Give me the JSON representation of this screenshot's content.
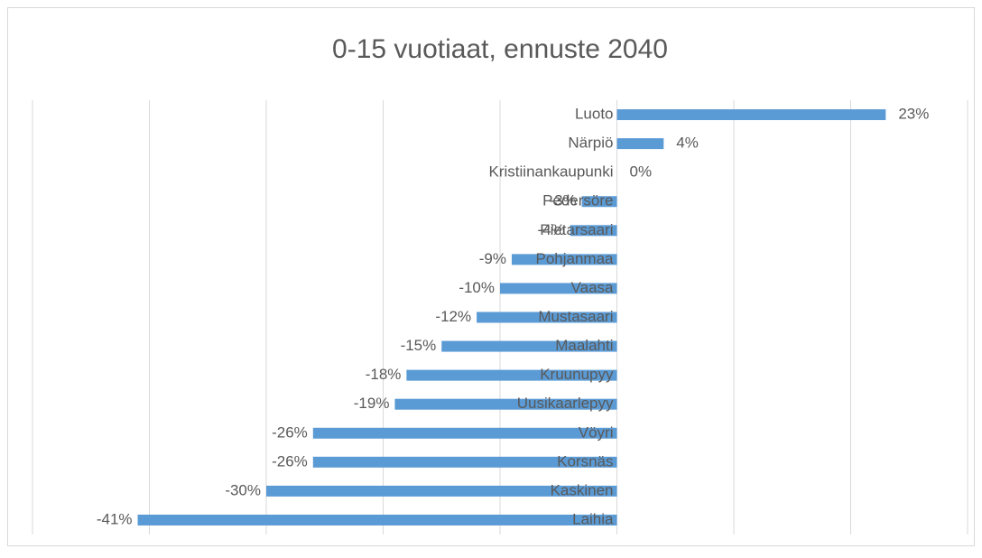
{
  "chart_data": {
    "type": "hbar",
    "title": "0-15 vuotiaat, ennuste 2040",
    "categories": [
      "Luoto",
      "Närpiö",
      "Kristiinankaupunki",
      "Pedersöre",
      "Pietarsaari",
      "Pohjanmaa",
      "Vaasa",
      "Mustasaari",
      "Maalahti",
      "Kruunupyy",
      "Uusikaarlepyy",
      "Vöyri",
      "Korsnäs",
      "Kaskinen",
      "Laihia"
    ],
    "values": [
      23,
      4,
      0,
      -3,
      -4,
      -9,
      -10,
      -12,
      -15,
      -18,
      -19,
      -26,
      -26,
      -30,
      -41
    ],
    "value_labels": [
      "23%",
      "4%",
      "0%",
      "-3%",
      "-4%",
      "-9%",
      "-10%",
      "-12%",
      "-15%",
      "-18%",
      "-19%",
      "-26%",
      "-26%",
      "-30%",
      "-41%"
    ],
    "color": "#5b9bd5",
    "xlim": [
      -50,
      30
    ],
    "xticks": [
      -50,
      -40,
      -30,
      -20,
      -10,
      0,
      10,
      20,
      30
    ],
    "grid": true
  }
}
